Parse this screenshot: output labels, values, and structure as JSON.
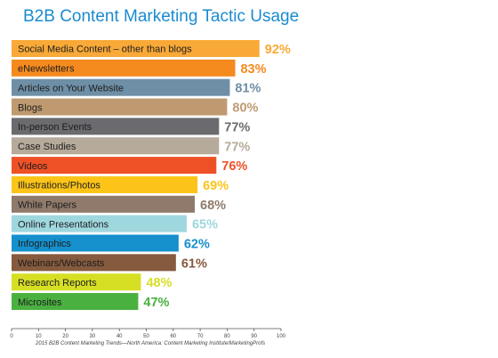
{
  "chart_data": {
    "type": "bar",
    "orientation": "horizontal",
    "title": "B2B Content Marketing Tactic Usage",
    "categories": [
      "Social Media Content – other than blogs",
      "eNewsletters",
      "Articles on Your Website",
      "Blogs",
      "In-person Events",
      "Case Studies",
      "Videos",
      "Illustrations/Photos",
      "White Papers",
      "Online Presentations",
      "Infographics",
      "Webinars/Webcasts",
      "Research Reports",
      "Microsites"
    ],
    "values": [
      92,
      83,
      81,
      80,
      77,
      77,
      76,
      69,
      68,
      65,
      62,
      61,
      48,
      47
    ],
    "value_labels": [
      "92%",
      "83%",
      "81%",
      "80%",
      "77%",
      "77%",
      "76%",
      "69%",
      "68%",
      "65%",
      "62%",
      "61%",
      "48%",
      "47%"
    ],
    "colors": [
      "#f9a937",
      "#f58a1f",
      "#6e8fa6",
      "#bf9a70",
      "#6b6a6e",
      "#b6ab9a",
      "#ef5127",
      "#fcc419",
      "#8f7a6b",
      "#9fd7de",
      "#1590cd",
      "#855a3e",
      "#d7df24",
      "#4ab040"
    ],
    "xlim": [
      0,
      100
    ],
    "xticks": [
      "0",
      "10",
      "20",
      "30",
      "40",
      "50",
      "60",
      "70",
      "80",
      "90",
      "100"
    ],
    "xlabel": "",
    "ylabel": "",
    "grid": false,
    "legend": "none"
  },
  "source": "2015 B2B Content Marketing Trends—North America: Content Marketing Institute/MarketingProfs"
}
